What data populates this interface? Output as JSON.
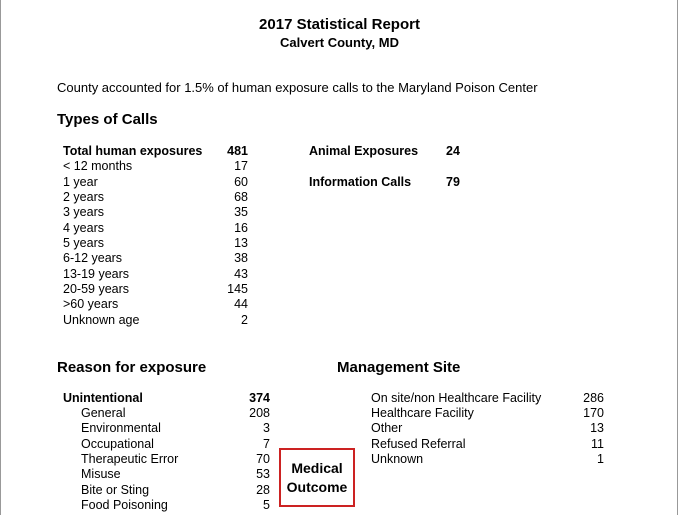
{
  "report": {
    "title": "2017 Statistical Report",
    "subtitle": "Calvert County, MD",
    "intro": "County accounted for 1.5% of human exposure calls to the Maryland Poison Center"
  },
  "types_of_calls": {
    "heading": "Types of Calls",
    "total_label": "Total human exposures",
    "total_value": "481",
    "age_rows": [
      {
        "label": "< 12 months",
        "value": "17"
      },
      {
        "label": "1 year",
        "value": "60"
      },
      {
        "label": "2 years",
        "value": "68"
      },
      {
        "label": "3 years",
        "value": "35"
      },
      {
        "label": "4 years",
        "value": "16"
      },
      {
        "label": "5 years",
        "value": "13"
      },
      {
        "label": "6-12 years",
        "value": "38"
      },
      {
        "label": "13-19 years",
        "value": "43"
      },
      {
        "label": "20-59 years",
        "value": "145"
      },
      {
        "label": ">60 years",
        "value": "44"
      },
      {
        "label": "Unknown age",
        "value": "2"
      }
    ],
    "animal_label": "Animal Exposures",
    "animal_value": "24",
    "info_label": "Information Calls",
    "info_value": "79"
  },
  "reason_for_exposure": {
    "heading": "Reason for exposure",
    "unintentional_label": "Unintentional",
    "unintentional_value": "374",
    "rows": [
      {
        "label": "General",
        "value": "208"
      },
      {
        "label": "Environmental",
        "value": "3"
      },
      {
        "label": "Occupational",
        "value": "7"
      },
      {
        "label": "Therapeutic Error",
        "value": "70"
      },
      {
        "label": "Misuse",
        "value": "53"
      },
      {
        "label": "Bite or Sting",
        "value": "28"
      },
      {
        "label": "Food Poisoning",
        "value": "5"
      }
    ]
  },
  "management_site": {
    "heading": "Management Site",
    "rows": [
      {
        "label": "On site/non Healthcare Facility",
        "value": "286"
      },
      {
        "label": "Healthcare Facility",
        "value": "170"
      },
      {
        "label": "Other",
        "value": "13"
      },
      {
        "label": "Refused Referral",
        "value": "11"
      },
      {
        "label": "Unknown",
        "value": "1"
      }
    ]
  },
  "medical_outcome": {
    "line1": "Medical",
    "line2": "Outcome",
    "border_color": "#cc2222"
  }
}
